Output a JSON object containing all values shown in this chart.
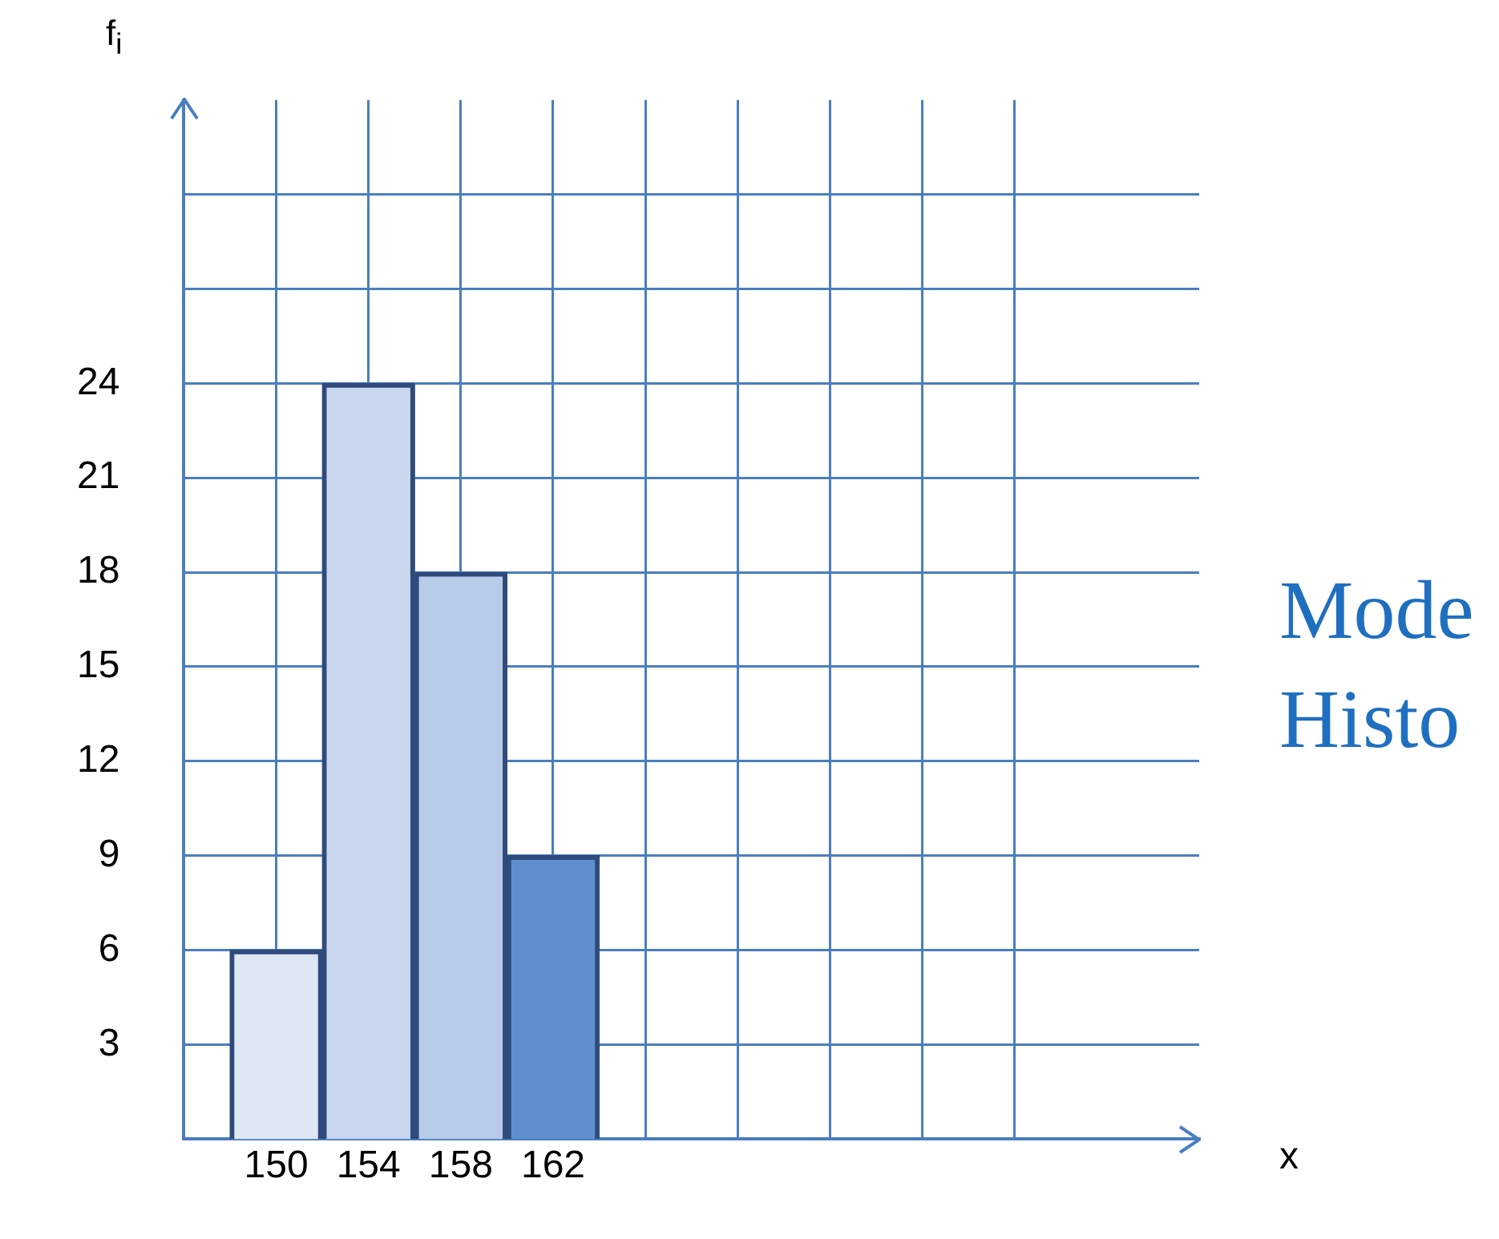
{
  "chart_data": {
    "type": "histogram",
    "xlabel": "x",
    "ylabel": "f$_{i}$",
    "bins": [
      148,
      152,
      156,
      160,
      164
    ],
    "values": [
      6,
      24,
      18,
      9
    ],
    "colors": [
      "#dfe7f5",
      "#c9d7ef",
      "#b9cbea",
      "#5f8fd0"
    ],
    "xlim": [
      146,
      190
    ],
    "xticks": [
      150,
      154,
      158,
      162,
      {
        "value": 166,
        "label": null
      },
      {
        "value": 170,
        "label": null
      },
      {
        "value": 174,
        "label": null
      },
      {
        "value": 178,
        "label": null
      },
      {
        "value": 182,
        "label": null
      }
    ],
    "ylim": [
      0,
      33
    ],
    "yticks": [
      3,
      6,
      9,
      12,
      15,
      18,
      21,
      24,
      {
        "value": 27,
        "label": null
      },
      {
        "value": 30,
        "label": null
      }
    ],
    "grid": true,
    "legend": false,
    "annotations": [
      "Mode",
      "Histo"
    ]
  }
}
